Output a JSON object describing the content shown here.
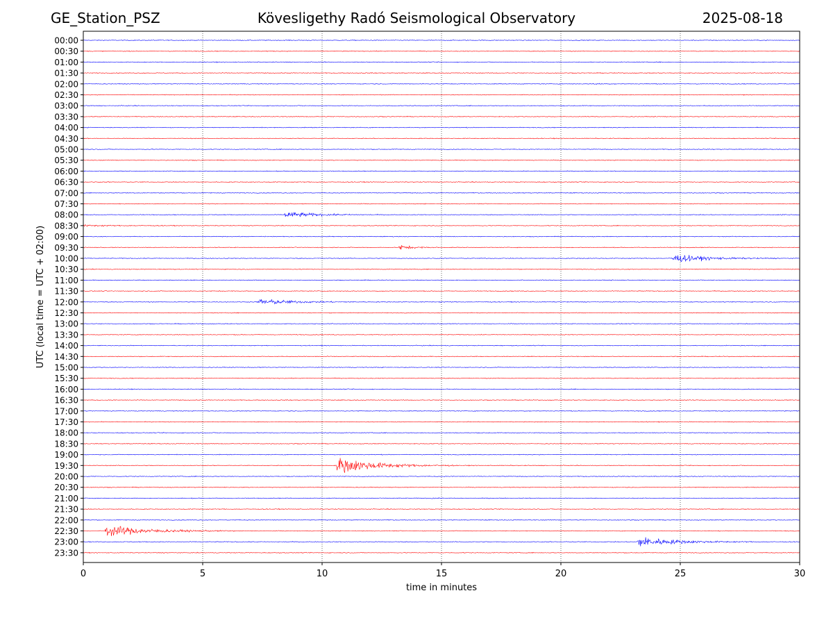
{
  "header": {
    "station": "GE_Station_PSZ",
    "observatory": "Kövesligethy Radó Seismological Observatory",
    "date": "2025-08-18"
  },
  "chart_data": {
    "type": "line",
    "title": "Kövesligethy Radó Seismological Observatory",
    "xlabel": "time in minutes",
    "ylabel": "UTC (local time = UTC + 02:00)",
    "xlim": [
      0,
      30
    ],
    "x_ticks": [
      "0",
      "5",
      "10",
      "15",
      "20",
      "25",
      "30"
    ],
    "x_tick_values": [
      0,
      5,
      10,
      15,
      20,
      25,
      30
    ],
    "x_grid": "dotted vertical lines at 5-minute intervals",
    "line_colors": [
      "#0000ff",
      "#ff0000"
    ],
    "color_cycle": "blue for full-hour traces, red for half-hour traces",
    "row_labels": [
      "00:00",
      "00:30",
      "01:00",
      "01:30",
      "02:00",
      "02:30",
      "03:00",
      "03:30",
      "04:00",
      "04:30",
      "05:00",
      "05:30",
      "06:00",
      "06:30",
      "07:00",
      "07:30",
      "08:00",
      "08:30",
      "09:00",
      "09:30",
      "10:00",
      "10:30",
      "11:00",
      "11:30",
      "12:00",
      "12:30",
      "13:00",
      "13:30",
      "14:00",
      "14:30",
      "15:00",
      "15:30",
      "16:00",
      "16:30",
      "17:00",
      "17:30",
      "18:00",
      "18:30",
      "19:00",
      "19:30",
      "20:00",
      "20:30",
      "21:00",
      "21:30",
      "22:00",
      "22:30",
      "23:00",
      "23:30"
    ],
    "events": [
      {
        "row": "02:00",
        "onset_min": 21.2,
        "amplitude": 0.08,
        "duration_min": 1.5
      },
      {
        "row": "08:00",
        "onset_min": 8.4,
        "amplitude": 0.55,
        "duration_min": 4.0
      },
      {
        "row": "08:00",
        "onset_min": 29.2,
        "amplitude": 0.1,
        "duration_min": 0.8
      },
      {
        "row": "08:30",
        "onset_min": 0.0,
        "amplitude": 0.1,
        "duration_min": 4.0
      },
      {
        "row": "09:30",
        "onset_min": 13.2,
        "amplitude": 0.45,
        "duration_min": 1.7
      },
      {
        "row": "10:00",
        "onset_min": 24.6,
        "amplitude": 0.75,
        "duration_min": 4.5
      },
      {
        "row": "12:00",
        "onset_min": 7.3,
        "amplitude": 0.55,
        "duration_min": 4.5
      },
      {
        "row": "12:00",
        "onset_min": 14.9,
        "amplitude": 0.06,
        "duration_min": 0.6
      },
      {
        "row": "15:00",
        "onset_min": 22.6,
        "amplitude": 0.06,
        "duration_min": 0.6
      },
      {
        "row": "19:30",
        "onset_min": 10.6,
        "amplitude": 1.5,
        "duration_min": 5.0
      },
      {
        "row": "21:00",
        "onset_min": 14.5,
        "amplitude": 0.1,
        "duration_min": 0.7
      },
      {
        "row": "22:30",
        "onset_min": 0.9,
        "amplitude": 1.0,
        "duration_min": 5.5
      },
      {
        "row": "23:00",
        "onset_min": 23.2,
        "amplitude": 0.9,
        "duration_min": 5.0
      }
    ]
  }
}
